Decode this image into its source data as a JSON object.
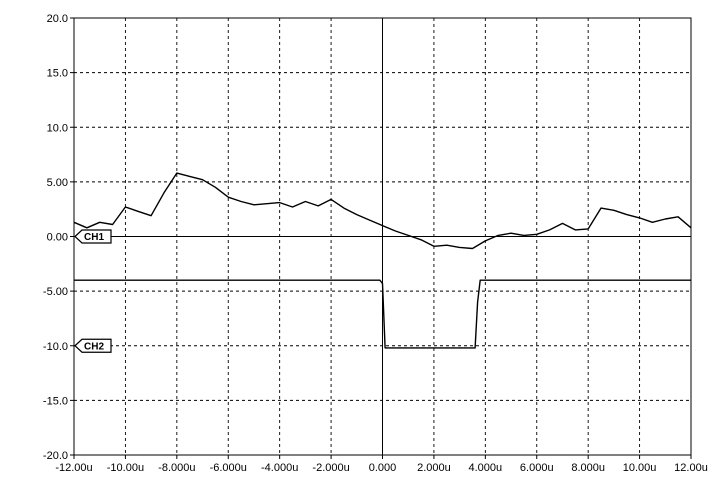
{
  "chart_data": {
    "type": "line",
    "title": "",
    "xlabel": "",
    "ylabel": "",
    "xlim": [
      -12.0,
      12.0
    ],
    "ylim": [
      -20.0,
      20.0
    ],
    "grid": true,
    "x_ticks": [
      {
        "value": -12,
        "label": "-12.00u"
      },
      {
        "value": -10,
        "label": "-10.00u"
      },
      {
        "value": -8,
        "label": "-8.000u"
      },
      {
        "value": -6,
        "label": "-6.000u"
      },
      {
        "value": -4,
        "label": "-4.000u"
      },
      {
        "value": -2,
        "label": "-2.000u"
      },
      {
        "value": 0,
        "label": "0.000"
      },
      {
        "value": 2,
        "label": "2.000u"
      },
      {
        "value": 4,
        "label": "4.000u"
      },
      {
        "value": 6,
        "label": "6.000u"
      },
      {
        "value": 8,
        "label": "8.000u"
      },
      {
        "value": 10,
        "label": "10.00u"
      },
      {
        "value": 12,
        "label": "12.00u"
      }
    ],
    "y_ticks": [
      {
        "value": 20,
        "label": "20.0"
      },
      {
        "value": 15,
        "label": "15.0"
      },
      {
        "value": 10,
        "label": "10.0"
      },
      {
        "value": 5,
        "label": "5.00"
      },
      {
        "value": 0,
        "label": "0.00"
      },
      {
        "value": -5,
        "label": "-5.00"
      },
      {
        "value": -10,
        "label": "-10.0"
      },
      {
        "value": -15,
        "label": "-15.0"
      },
      {
        "value": -20,
        "label": "-20.0"
      }
    ],
    "series": [
      {
        "name": "CH1",
        "marker_level": 0,
        "x": [
          -12.0,
          -11.5,
          -11.0,
          -10.5,
          -10.0,
          -9.5,
          -9.0,
          -8.5,
          -8.0,
          -7.5,
          -7.0,
          -6.5,
          -6.0,
          -5.5,
          -5.0,
          -4.5,
          -4.0,
          -3.5,
          -3.0,
          -2.5,
          -2.0,
          -1.5,
          -1.0,
          -0.5,
          0.0,
          0.5,
          1.0,
          1.5,
          2.0,
          2.5,
          3.0,
          3.5,
          4.0,
          4.5,
          5.0,
          5.5,
          6.0,
          6.5,
          7.0,
          7.5,
          8.0,
          8.5,
          9.0,
          9.5,
          10.0,
          10.5,
          11.0,
          11.5,
          12.0
        ],
        "y": [
          1.3,
          0.8,
          1.3,
          1.1,
          2.7,
          2.3,
          1.9,
          4.0,
          5.8,
          5.5,
          5.2,
          4.5,
          3.6,
          3.2,
          2.9,
          3.0,
          3.1,
          2.7,
          3.2,
          2.8,
          3.4,
          2.6,
          2.0,
          1.5,
          1.0,
          0.5,
          0.1,
          -0.3,
          -0.9,
          -0.8,
          -1.0,
          -1.1,
          -0.4,
          0.1,
          0.3,
          0.1,
          0.2,
          0.6,
          1.2,
          0.6,
          0.7,
          2.6,
          2.4,
          2.0,
          1.7,
          1.3,
          1.6,
          1.8,
          0.8
        ]
      },
      {
        "name": "CH2",
        "marker_level": -10,
        "x": [
          -12.0,
          -0.1,
          0.0,
          0.1,
          3.6,
          3.7,
          3.8,
          12.0
        ],
        "y": [
          -4.0,
          -4.0,
          -4.3,
          -10.2,
          -10.2,
          -6.0,
          -4.0,
          -4.0
        ]
      }
    ]
  }
}
